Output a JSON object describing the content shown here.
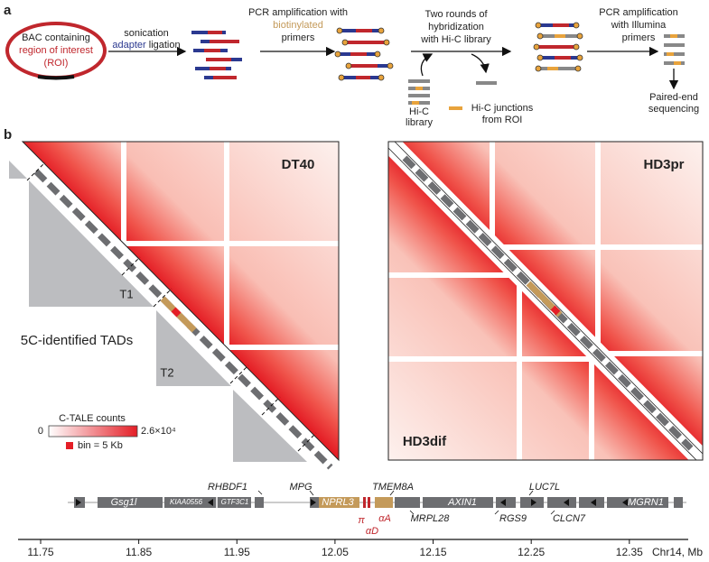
{
  "panel_a": {
    "label": "a",
    "bac": [
      "BAC containing",
      "region of interest",
      "(ROI)"
    ],
    "step_1": [
      "sonication",
      "adapter",
      "ligation"
    ],
    "step_2": [
      "PCR amplification with",
      "biotinylated",
      "primers"
    ],
    "step_3": [
      "Two rounds of",
      "hybridization",
      "with Hi-C library"
    ],
    "hic_library": [
      "Hi-C",
      "library"
    ],
    "junction_legend": [
      "Hi-C junctions",
      "from ROI"
    ],
    "step_4": [
      "PCR amplification",
      "with Illumina",
      "primers"
    ],
    "output": [
      "Paired-end",
      "sequencing"
    ]
  },
  "panel_b": {
    "label": "b",
    "maps": [
      "DT40",
      "HD3pr",
      "HD3dif"
    ],
    "tads_label": "5C-identified TADs",
    "tads": [
      "T1",
      "T2"
    ],
    "legend": {
      "title": "C-TALE counts",
      "min": 0,
      "max": "2.6×10⁴",
      "bin": "bin = 5 Kb"
    },
    "genes": [
      "Gsg1l",
      "KIAA0556",
      "GTF3C1",
      "RHBDF1",
      "MPG",
      "NPRL3",
      "TMEM8A",
      "π",
      "αD",
      "αA",
      "MRPL28",
      "AXIN1",
      "LUC7L",
      "RGS9",
      "CLCN7",
      "MGRN1"
    ],
    "axis": {
      "xlim": [
        11.727,
        12.41
      ],
      "xticks": [
        11.75,
        11.85,
        11.95,
        12.05,
        12.15,
        12.25,
        12.35
      ],
      "unit": "Chr14, Mb"
    }
  }
}
